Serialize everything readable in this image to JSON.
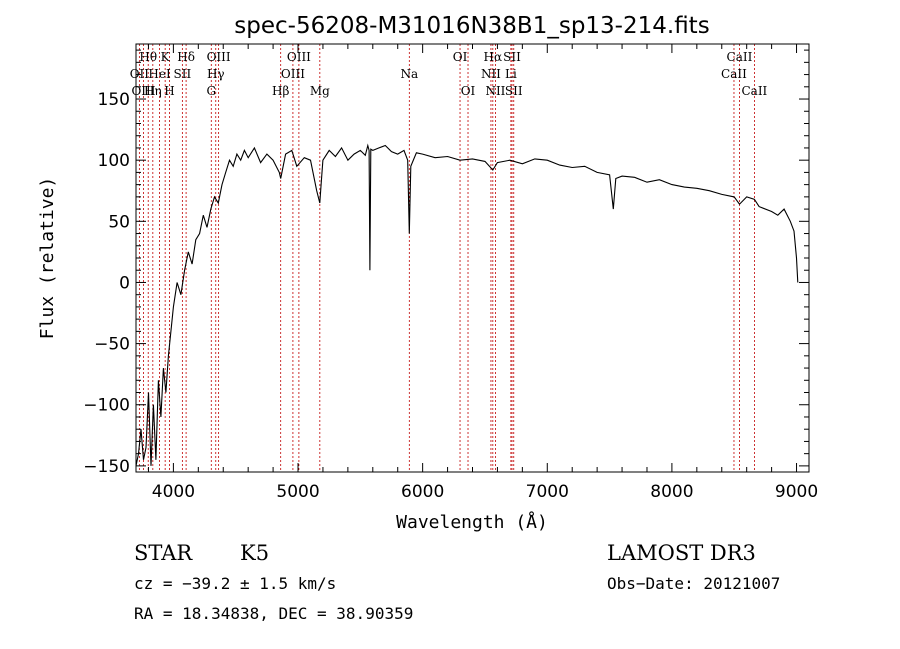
{
  "chart_data": {
    "type": "line",
    "title": "spec-56208-M31016N38B1_sp13-214.fits",
    "xlabel": "Wavelength (Å)",
    "ylabel": "Flux (relative)",
    "xlim": [
      3700,
      9100
    ],
    "ylim": [
      -155,
      195
    ],
    "xticks": [
      4000,
      5000,
      6000,
      7000,
      8000,
      9000
    ],
    "yticks": [
      -150,
      -100,
      -50,
      0,
      50,
      100,
      150
    ],
    "series": [
      {
        "name": "flux",
        "x": [
          3700,
          3720,
          3740,
          3760,
          3780,
          3800,
          3820,
          3840,
          3860,
          3880,
          3900,
          3920,
          3940,
          3960,
          3980,
          4000,
          4030,
          4060,
          4090,
          4120,
          4150,
          4180,
          4210,
          4240,
          4270,
          4300,
          4330,
          4360,
          4390,
          4420,
          4450,
          4480,
          4510,
          4540,
          4570,
          4600,
          4650,
          4700,
          4750,
          4800,
          4850,
          4861,
          4900,
          4950,
          4990,
          5050,
          5100,
          5150,
          5175,
          5185,
          5200,
          5250,
          5300,
          5350,
          5400,
          5450,
          5500,
          5540,
          5560,
          5570,
          5577,
          5584,
          5600,
          5650,
          5700,
          5750,
          5800,
          5850,
          5880,
          5893,
          5905,
          5950,
          6000,
          6100,
          6200,
          6300,
          6400,
          6500,
          6563,
          6600,
          6700,
          6800,
          6900,
          7000,
          7100,
          7200,
          7300,
          7400,
          7500,
          7530,
          7550,
          7600,
          7700,
          7800,
          7900,
          8000,
          8100,
          8200,
          8300,
          8400,
          8500,
          8542,
          8600,
          8662,
          8700,
          8800,
          8850,
          8900,
          8950,
          8980,
          9000,
          9010
        ],
        "values": [
          -150,
          -140,
          -120,
          -145,
          -135,
          -90,
          -150,
          -100,
          -145,
          -80,
          -110,
          -70,
          -90,
          -60,
          -40,
          -20,
          0,
          -10,
          10,
          25,
          15,
          35,
          40,
          55,
          45,
          60,
          70,
          65,
          80,
          90,
          100,
          95,
          105,
          100,
          108,
          102,
          110,
          98,
          105,
          100,
          90,
          85,
          105,
          108,
          95,
          102,
          100,
          75,
          65,
          80,
          100,
          108,
          103,
          110,
          100,
          105,
          108,
          104,
          112,
          108,
          10,
          109,
          108,
          110,
          112,
          107,
          105,
          108,
          100,
          40,
          95,
          106,
          105,
          102,
          103,
          100,
          101,
          99,
          92,
          98,
          100,
          97,
          101,
          100,
          96,
          94,
          95,
          90,
          88,
          60,
          85,
          87,
          86,
          82,
          84,
          80,
          78,
          77,
          75,
          72,
          70,
          64,
          70,
          68,
          62,
          58,
          55,
          60,
          50,
          42,
          20,
          0
        ]
      }
    ],
    "line_markers": [
      {
        "label": "Hθ",
        "x": 3798,
        "row": 0
      },
      {
        "label": "OII",
        "x": 3727,
        "row": 1
      },
      {
        "label": "OIII",
        "x": 3760,
        "row": 2
      },
      {
        "label": "K",
        "x": 3934,
        "row": 0
      },
      {
        "label": "Hη",
        "x": 3835,
        "row": 2
      },
      {
        "label": "HeI",
        "x": 3889,
        "row": 1
      },
      {
        "label": "H",
        "x": 3969,
        "row": 2
      },
      {
        "label": "Hδ",
        "x": 4102,
        "row": 0
      },
      {
        "label": "SII",
        "x": 4072,
        "row": 1
      },
      {
        "label": "OIII",
        "x": 4363,
        "row": 0
      },
      {
        "label": "Hγ",
        "x": 4340,
        "row": 1
      },
      {
        "label": "G",
        "x": 4304,
        "row": 2
      },
      {
        "label": "OIII",
        "x": 5007,
        "row": 0
      },
      {
        "label": "OIII",
        "x": 4959,
        "row": 1
      },
      {
        "label": "Hβ",
        "x": 4861,
        "row": 2
      },
      {
        "label": "Mg",
        "x": 5175,
        "row": 2
      },
      {
        "label": "Na",
        "x": 5893,
        "row": 1
      },
      {
        "label": "OI",
        "x": 6300,
        "row": 0
      },
      {
        "label": "OI",
        "x": 6364,
        "row": 2
      },
      {
        "label": "Hα",
        "x": 6563,
        "row": 0
      },
      {
        "label": "NII",
        "x": 6548,
        "row": 1
      },
      {
        "label": "NII",
        "x": 6584,
        "row": 2
      },
      {
        "label": "SII",
        "x": 6717,
        "row": 0
      },
      {
        "label": "Li",
        "x": 6708,
        "row": 1
      },
      {
        "label": "SII",
        "x": 6731,
        "row": 2
      },
      {
        "label": "CaII",
        "x": 8542,
        "row": 0
      },
      {
        "label": "CaII",
        "x": 8498,
        "row": 1
      },
      {
        "label": "CaII",
        "x": 8662,
        "row": 2
      }
    ],
    "colors": {
      "spectrum": "#000000",
      "markers": "#c00000"
    }
  },
  "info": {
    "object_class": "STAR",
    "subclass": "K5",
    "survey": "LAMOST DR3",
    "velocity": "cz = −39.2 ± 1.5 km/s",
    "obs_date": "Obs−Date: 20121007",
    "coords": "RA =  18.34838, DEC =  38.90359"
  }
}
